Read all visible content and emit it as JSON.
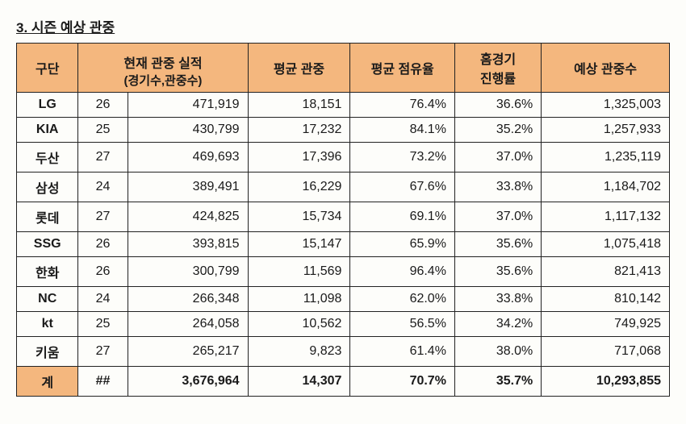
{
  "title": "3. 시즌 예상 관중",
  "table": {
    "columns": {
      "team": "구단",
      "current_header": "현재 관중 실적",
      "current_sub": "(경기수,관중수)",
      "avg_attend": "평균 관중",
      "avg_share": "평균 점유율",
      "home_progress": "홈경기\n진행률",
      "projected": "예상 관중수"
    },
    "header_bg": "#f4b77e",
    "border_color": "#222222",
    "font_size": 16,
    "rows": [
      {
        "team": "LG",
        "games": "26",
        "attend": "471,919",
        "avg": "18,151",
        "share": "76.4%",
        "progress": "36.6%",
        "proj": "1,325,003"
      },
      {
        "team": "KIA",
        "games": "25",
        "attend": "430,799",
        "avg": "17,232",
        "share": "84.1%",
        "progress": "35.2%",
        "proj": "1,257,933"
      },
      {
        "team": "두산",
        "games": "27",
        "attend": "469,693",
        "avg": "17,396",
        "share": "73.2%",
        "progress": "37.0%",
        "proj": "1,235,119"
      },
      {
        "team": "삼성",
        "games": "24",
        "attend": "389,491",
        "avg": "16,229",
        "share": "67.6%",
        "progress": "33.8%",
        "proj": "1,184,702"
      },
      {
        "team": "롯데",
        "games": "27",
        "attend": "424,825",
        "avg": "15,734",
        "share": "69.1%",
        "progress": "37.0%",
        "proj": "1,117,132"
      },
      {
        "team": "SSG",
        "games": "26",
        "attend": "393,815",
        "avg": "15,147",
        "share": "65.9%",
        "progress": "35.6%",
        "proj": "1,075,418"
      },
      {
        "team": "한화",
        "games": "26",
        "attend": "300,799",
        "avg": "11,569",
        "share": "96.4%",
        "progress": "35.6%",
        "proj": "821,413"
      },
      {
        "team": "NC",
        "games": "24",
        "attend": "266,348",
        "avg": "11,098",
        "share": "62.0%",
        "progress": "33.8%",
        "proj": "810,142"
      },
      {
        "team": "kt",
        "games": "25",
        "attend": "264,058",
        "avg": "10,562",
        "share": "56.5%",
        "progress": "34.2%",
        "proj": "749,925"
      },
      {
        "team": "키움",
        "games": "27",
        "attend": "265,217",
        "avg": "9,823",
        "share": "61.4%",
        "progress": "38.0%",
        "proj": "717,068"
      }
    ],
    "total": {
      "team": "계",
      "games": "##",
      "attend": "3,676,964",
      "avg": "14,307",
      "share": "70.7%",
      "progress": "35.7%",
      "proj": "10,293,855"
    }
  }
}
